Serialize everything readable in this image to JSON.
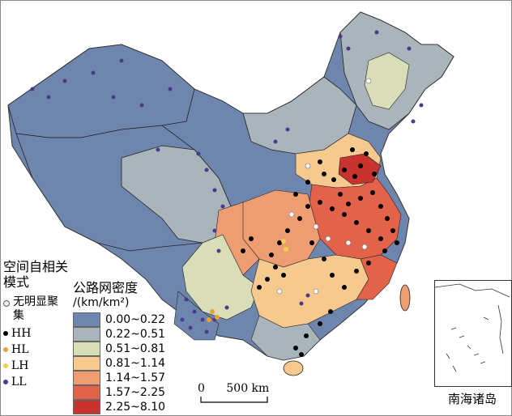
{
  "legend": {
    "lisa_title": "空间自相关模式",
    "lisa_items": [
      {
        "label": "无明显聚集",
        "color": "#ffffff",
        "border": "#555555"
      },
      {
        "label": "HH",
        "color": "#000000",
        "border": "#000000"
      },
      {
        "label": "HL",
        "color": "#e8a23a",
        "border": "#e8a23a"
      },
      {
        "label": "LH",
        "color": "#f1d24a",
        "border": "#f1d24a"
      },
      {
        "label": "LL",
        "color": "#4a3a8c",
        "border": "#4a3a8c"
      }
    ],
    "density_title": "公路网密度",
    "density_unit": "/(km/km²)",
    "density_classes": [
      {
        "label": "0.00~0.22",
        "color": "#6e86ad"
      },
      {
        "label": "0.22~0.51",
        "color": "#a9b5bb"
      },
      {
        "label": "0.51~0.81",
        "color": "#d9ddb8"
      },
      {
        "label": "0.81~1.14",
        "color": "#f6c98f"
      },
      {
        "label": "1.14~1.57",
        "color": "#ee9d72"
      },
      {
        "label": "1.57~2.25",
        "color": "#e3624a"
      },
      {
        "label": "2.25~8.10",
        "color": "#c8322f"
      }
    ]
  },
  "scale_bar": {
    "left": "0",
    "right": "500 km"
  },
  "inset": {
    "title": "南海诸岛"
  }
}
